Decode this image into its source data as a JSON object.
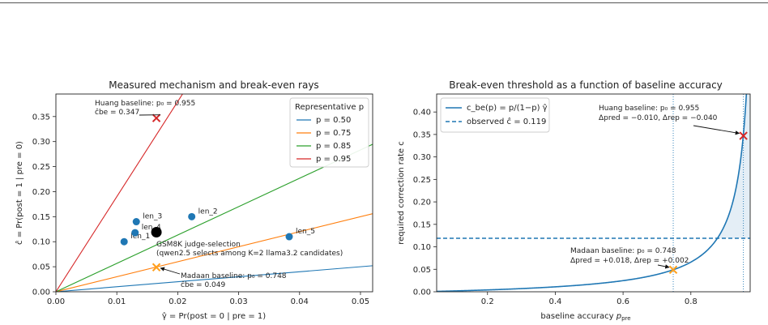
{
  "chart_data": [
    {
      "type": "scatter",
      "title": "Measured mechanism and break-even rays",
      "xlabel": "γ̂ = Pr(post = 0 | pre = 1)",
      "ylabel": "ĉ = Pr(post = 1 | pre = 0)",
      "xlim": [
        0,
        0.052
      ],
      "ylim": [
        0,
        0.395
      ],
      "xticks": [
        "0.00",
        "0.01",
        "0.02",
        "0.03",
        "0.04",
        "0.05"
      ],
      "xtick_values": [
        0,
        0.01,
        0.02,
        0.03,
        0.04,
        0.05
      ],
      "yticks": [
        "0.00",
        "0.05",
        "0.10",
        "0.15",
        "0.20",
        "0.25",
        "0.30",
        "0.35"
      ],
      "ytick_values": [
        0,
        0.05,
        0.1,
        0.15,
        0.2,
        0.25,
        0.3,
        0.35
      ],
      "legend": {
        "title": "Representative p",
        "placement": "top-right",
        "entries": [
          {
            "label": "p = 0.50",
            "color": "#1f77b4"
          },
          {
            "label": "p = 0.75",
            "color": "#ff7f0e"
          },
          {
            "label": "p = 0.85",
            "color": "#2ca02c"
          },
          {
            "label": "p = 0.95",
            "color": "#d62728"
          }
        ]
      },
      "rays": [
        {
          "p": 0.5,
          "slope": 1.0,
          "color": "#1f77b4"
        },
        {
          "p": 0.75,
          "slope": 3.0,
          "color": "#ff7f0e"
        },
        {
          "p": 0.85,
          "slope": 5.667,
          "color": "#2ca02c"
        },
        {
          "p": 0.95,
          "slope": 19.0,
          "color": "#d62728"
        }
      ],
      "points": [
        {
          "label": "len_1",
          "x": 0.0112,
          "y": 0.1
        },
        {
          "label": "len_3",
          "x": 0.0132,
          "y": 0.14
        },
        {
          "label": "len_4",
          "x": 0.013,
          "y": 0.118
        },
        {
          "label": "len_2",
          "x": 0.0223,
          "y": 0.15
        },
        {
          "label": "len_5",
          "x": 0.0383,
          "y": 0.11
        }
      ],
      "highlight": {
        "x": 0.0165,
        "y": 0.119,
        "label_line1": "GSM8K judge-selection",
        "label_line2": "(qwen2.5 selects among K=2 llama3.2 candidates)"
      },
      "markers": [
        {
          "x": 0.0165,
          "y": 0.347,
          "color": "#d62728",
          "line1": "Huang baseline: p₀ = 0.955",
          "line2": "ĉbe = 0.347"
        },
        {
          "x": 0.0165,
          "y": 0.049,
          "color": "#ff9f1c",
          "line1": "Madaan baseline: p₀ = 0.748",
          "line2": "ĉbe = 0.049"
        }
      ]
    },
    {
      "type": "line",
      "title": "Break-even threshold as a function of baseline accuracy",
      "xlabel": "baseline accuracy p_pre",
      "ylabel": "required correction rate c",
      "xlim": [
        0.05,
        0.975
      ],
      "ylim": [
        0,
        0.44
      ],
      "xticks": [
        "0.2",
        "0.4",
        "0.6",
        "0.8"
      ],
      "xtick_values": [
        0.2,
        0.4,
        0.6,
        0.8
      ],
      "yticks": [
        "0.00",
        "0.05",
        "0.10",
        "0.15",
        "0.20",
        "0.25",
        "0.30",
        "0.35",
        "0.40"
      ],
      "ytick_values": [
        0,
        0.05,
        0.1,
        0.15,
        0.2,
        0.25,
        0.3,
        0.35,
        0.4
      ],
      "gamma_hat": 0.0165,
      "observed_c": 0.119,
      "legend": {
        "placement": "top-left",
        "entries": [
          {
            "label": "c_be(p) = p/(1−p) γ̂",
            "color": "#1f77b4",
            "style": "solid"
          },
          {
            "label": "observed ĉ = 0.119",
            "color": "#1f77b4",
            "style": "dashed"
          }
        ]
      },
      "vlines": [
        0.748,
        0.955
      ],
      "markers": [
        {
          "x": 0.955,
          "y": 0.347,
          "color": "#d62728",
          "line1": "Huang baseline: p₀ = 0.955",
          "line2": "Δpred = −0.010, Δrep = −0.040"
        },
        {
          "x": 0.748,
          "y": 0.049,
          "color": "#ff9f1c",
          "line1": "Madaan baseline: p₀ = 0.748",
          "line2": "Δpred = +0.018, Δrep = +0.002"
        }
      ]
    }
  ]
}
